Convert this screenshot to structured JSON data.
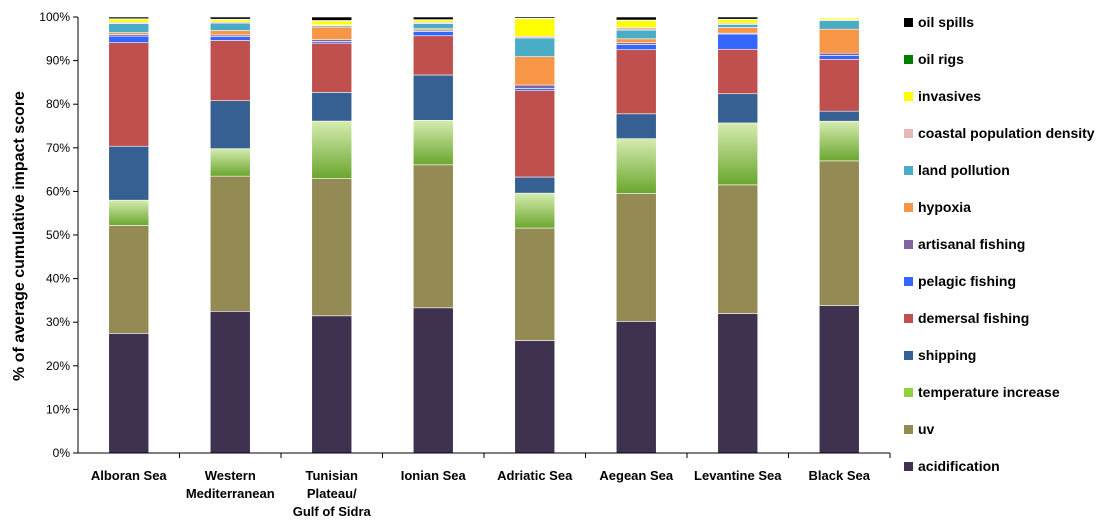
{
  "chart_data": {
    "type": "bar",
    "stacked": true,
    "normalized_percent": true,
    "ylabel": "% of average cumulative impact score",
    "xlabel": "",
    "ylim": [
      0,
      100
    ],
    "yticks": [
      "0%",
      "10%",
      "20%",
      "30%",
      "40%",
      "50%",
      "60%",
      "70%",
      "80%",
      "90%",
      "100%"
    ],
    "grid": false,
    "legend_position": "right",
    "categories": [
      [
        "Alboran Sea"
      ],
      [
        "Western",
        "Mediterranean"
      ],
      [
        "Tunisian",
        "Plateau/",
        "Gulf of Sidra"
      ],
      [
        "Ionian Sea"
      ],
      [
        "Adriatic Sea"
      ],
      [
        "Aegean Sea"
      ],
      [
        "Levantine Sea"
      ],
      [
        "Black Sea"
      ]
    ],
    "series": [
      {
        "name": "acidification",
        "color": "#3f3150",
        "values": [
          27.5,
          32.5,
          31.5,
          33.3,
          25.8,
          30.2,
          32.0,
          33.8
        ]
      },
      {
        "name": "uv",
        "color": "#948b54",
        "values": [
          24.8,
          31.0,
          31.5,
          32.8,
          25.8,
          29.3,
          29.5,
          33.2
        ]
      },
      {
        "name": "temperature increase",
        "color": "#7fba3a",
        "values": [
          5.8,
          6.3,
          13.2,
          10.2,
          8.0,
          12.6,
          14.2,
          9.1
        ]
      },
      {
        "name": "shipping",
        "color": "#366092",
        "values": [
          12.4,
          11.0,
          6.6,
          10.4,
          3.7,
          5.7,
          6.7,
          2.3
        ]
      },
      {
        "name": "demersal fishing",
        "color": "#c0504d",
        "values": [
          23.8,
          13.8,
          11.3,
          9.0,
          19.8,
          14.7,
          10.2,
          11.9
        ]
      },
      {
        "name": "pelagic fishing",
        "color": "#3366ff",
        "values": [
          1.5,
          0.9,
          0.4,
          1.0,
          0.5,
          1.2,
          3.5,
          0.9
        ]
      },
      {
        "name": "artisanal fishing",
        "color": "#8064a2",
        "values": [
          0.4,
          0.4,
          0.4,
          0.3,
          0.8,
          0.4,
          0.2,
          0.5
        ]
      },
      {
        "name": "hypoxia",
        "color": "#f79646",
        "values": [
          0.4,
          1.0,
          2.9,
          0.3,
          6.5,
          0.9,
          1.3,
          5.5
        ]
      },
      {
        "name": "land pollution",
        "color": "#4bacc6",
        "values": [
          2.1,
          1.7,
          0.3,
          1.2,
          4.3,
          2.0,
          0.7,
          2.0
        ]
      },
      {
        "name": "coastal population density",
        "color": "#e6b9b8",
        "values": [
          0.3,
          0.3,
          0.2,
          0.3,
          0.4,
          0.6,
          0.3,
          0.2
        ]
      },
      {
        "name": "invasives",
        "color": "#ffff00",
        "values": [
          0.7,
          0.5,
          0.9,
          0.5,
          4.0,
          1.6,
          0.8,
          0.4
        ]
      },
      {
        "name": "oil rigs",
        "color": "#008000",
        "values": [
          0.1,
          0.1,
          0.1,
          0.1,
          0.1,
          0.1,
          0.1,
          0.1
        ]
      },
      {
        "name": "oil spills",
        "color": "#000000",
        "values": [
          0.4,
          0.5,
          0.8,
          0.6,
          0.3,
          0.7,
          0.5,
          0.1
        ]
      }
    ]
  }
}
